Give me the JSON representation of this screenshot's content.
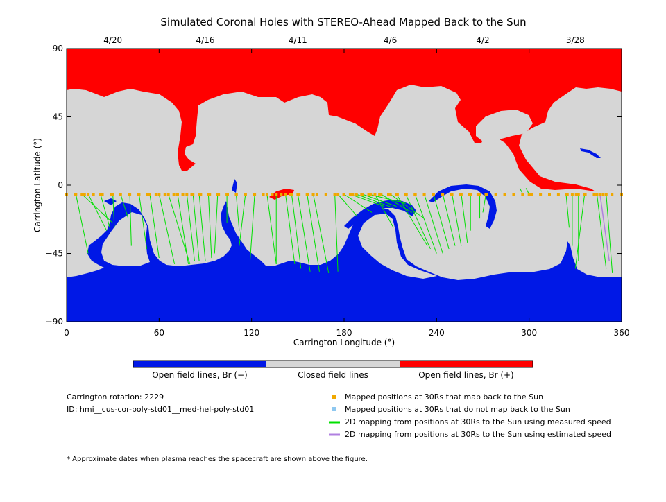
{
  "chart_data": {
    "type": "map",
    "title": "Simulated Coronal Holes with STEREO-Ahead Mapped Back to the Sun",
    "xlabel": "Carrington Longitude (°)",
    "ylabel": "Carrington Latitude (°)",
    "xlim": [
      0,
      360
    ],
    "ylim": [
      -90,
      90
    ],
    "xticks": [
      "0",
      "60",
      "120",
      "180",
      "240",
      "300",
      "360"
    ],
    "yticks": [
      "90",
      "45",
      "0",
      "−45",
      "−90"
    ],
    "top_dates": [
      {
        "label": "4/20",
        "lon": 30
      },
      {
        "label": "4/16",
        "lon": 90
      },
      {
        "label": "4/11",
        "lon": 150
      },
      {
        "label": "4/6",
        "lon": 210
      },
      {
        "label": "4/2",
        "lon": 270
      },
      {
        "label": "3/28",
        "lon": 330
      }
    ],
    "colorbar": [
      {
        "label": "Open field lines, Br (−)",
        "color": "#0018e6"
      },
      {
        "label": "Closed field lines",
        "color": "#d6d6d6"
      },
      {
        "label": "Open field lines, Br (+)",
        "color": "#ff0000"
      }
    ],
    "mapped_latitude": -6,
    "footpoints": [
      {
        "lon0": 0,
        "lon1": 0,
        "lat1": -59
      },
      {
        "lon0": 6,
        "lon1": 14,
        "lat1": -45
      },
      {
        "lon0": 10,
        "lon1": 30,
        "lat1": -25
      },
      {
        "lon0": 14,
        "lon1": 26,
        "lat1": -30
      },
      {
        "lon0": 22,
        "lon1": 28,
        "lat1": -28
      },
      {
        "lon0": 30,
        "lon1": 31,
        "lat1": -28
      },
      {
        "lon0": 35,
        "lon1": 40,
        "lat1": -22
      },
      {
        "lon0": 41,
        "lon1": 42,
        "lat1": -40
      },
      {
        "lon0": 47,
        "lon1": 52,
        "lat1": -42
      },
      {
        "lon0": 54,
        "lon1": 60,
        "lat1": -48
      },
      {
        "lon0": 60,
        "lon1": 70,
        "lat1": -52
      },
      {
        "lon0": 66,
        "lon1": 80,
        "lat1": -52
      },
      {
        "lon0": 72,
        "lon1": 79,
        "lat1": -52
      },
      {
        "lon0": 78,
        "lon1": 83,
        "lat1": -50
      },
      {
        "lon0": 82,
        "lon1": 86,
        "lat1": -50
      },
      {
        "lon0": 86,
        "lon1": 90,
        "lat1": -50
      },
      {
        "lon0": 92,
        "lon1": 94,
        "lat1": -48
      },
      {
        "lon0": 98,
        "lon1": 96,
        "lat1": -45
      },
      {
        "lon0": 104,
        "lon1": 104,
        "lat1": -25
      },
      {
        "lon0": 110,
        "lon1": 112,
        "lat1": -30
      },
      {
        "lon0": 116,
        "lon1": 112,
        "lat1": -40
      },
      {
        "lon0": 122,
        "lon1": 119,
        "lat1": -50
      },
      {
        "lon0": 130,
        "lon1": 136,
        "lat1": -52
      },
      {
        "lon0": 136,
        "lon1": 136,
        "lat1": -52
      },
      {
        "lon0": 142,
        "lon1": 148,
        "lat1": -52
      },
      {
        "lon0": 146,
        "lon1": 152,
        "lat1": -55
      },
      {
        "lon0": 150,
        "lon1": 158,
        "lat1": -57
      },
      {
        "lon0": 156,
        "lon1": 164,
        "lat1": -57
      },
      {
        "lon0": 160,
        "lon1": 170,
        "lat1": -58
      },
      {
        "lon0": 174,
        "lon1": 176,
        "lat1": -57
      },
      {
        "lon0": 176,
        "lon1": 188,
        "lat1": -20
      },
      {
        "lon0": 180,
        "lon1": 198,
        "lat1": -18
      },
      {
        "lon0": 184,
        "lon1": 206,
        "lat1": -14
      },
      {
        "lon0": 188,
        "lon1": 212,
        "lat1": -15
      },
      {
        "lon0": 192,
        "lon1": 214,
        "lat1": -14
      },
      {
        "lon0": 196,
        "lon1": 220,
        "lat1": -12
      },
      {
        "lon0": 200,
        "lon1": 212,
        "lat1": -28
      },
      {
        "lon0": 204,
        "lon1": 224,
        "lat1": -18
      },
      {
        "lon0": 210,
        "lon1": 232,
        "lat1": -22
      },
      {
        "lon0": 214,
        "lon1": 234,
        "lat1": -40
      },
      {
        "lon0": 220,
        "lon1": 236,
        "lat1": -42
      },
      {
        "lon0": 226,
        "lon1": 240,
        "lat1": -45
      },
      {
        "lon0": 232,
        "lon1": 244,
        "lat1": -45
      },
      {
        "lon0": 238,
        "lon1": 248,
        "lat1": -42
      },
      {
        "lon0": 244,
        "lon1": 252,
        "lat1": -40
      },
      {
        "lon0": 250,
        "lon1": 256,
        "lat1": -40
      },
      {
        "lon0": 256,
        "lon1": 260,
        "lat1": -38
      },
      {
        "lon0": 262,
        "lon1": 262,
        "lat1": -30
      },
      {
        "lon0": 268,
        "lon1": 268,
        "lat1": -22
      },
      {
        "lon0": 272,
        "lon1": 270,
        "lat1": -18
      },
      {
        "lon0": 296,
        "lon1": 294,
        "lat1": -2
      },
      {
        "lon0": 300,
        "lon1": 298,
        "lat1": -2
      },
      {
        "lon0": 324,
        "lon1": 326,
        "lat1": -28
      },
      {
        "lon0": 328,
        "lon1": 328,
        "lat1": -40
      },
      {
        "lon0": 332,
        "lon1": 332,
        "lat1": -50
      },
      {
        "lon0": 336,
        "lon1": 330,
        "lat1": -55
      },
      {
        "lon0": 344,
        "lon1": 350,
        "lat1": -55
      },
      {
        "lon0": 350,
        "lon1": 354,
        "lat1": -58
      },
      {
        "lon0": 360,
        "lon1": 360,
        "lat1": -45
      }
    ],
    "estimated_footpoints": [
      {
        "lon0": 346,
        "lon1": 352,
        "lat1": -50
      }
    ]
  },
  "info": {
    "rotation": "Carrington rotation: 2229",
    "id": "ID: hmi__cus-cor-poly-std01__med-hel-poly-std01",
    "footnote": "* Approximate dates when plasma reaches the spacecraft are shown above the figure."
  },
  "legend": [
    {
      "label": "Mapped positions at 30Rs that map back to the Sun",
      "color": "#f0a800",
      "kind": "square"
    },
    {
      "label": "Mapped positions at 30Rs that do not map back to the Sun",
      "color": "#8ec8f0",
      "kind": "square"
    },
    {
      "label": "2D mapping from positions at 30Rs to the Sun using measured speed",
      "color": "#00e000",
      "kind": "line"
    },
    {
      "label": "2D mapping from positions at 30Rs to the Sun using estimated speed",
      "color": "#b080e0",
      "kind": "line"
    }
  ]
}
